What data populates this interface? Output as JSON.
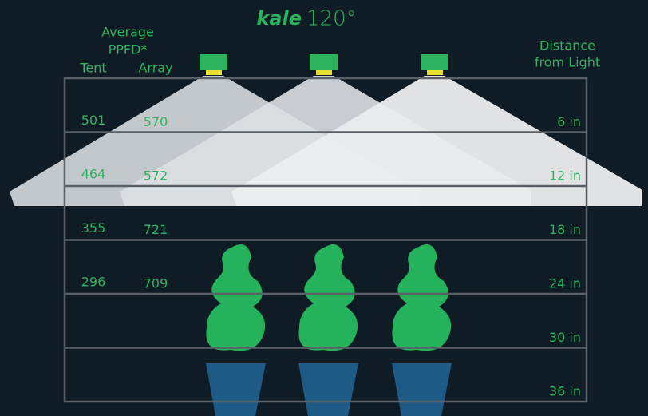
{
  "title": {
    "brand": "kale",
    "angle": "120°"
  },
  "headers": {
    "average": "Average",
    "ppfd": "PPFD*",
    "tent": "Tent",
    "array": "Array",
    "distance_1": "Distance",
    "distance_2": "from Light"
  },
  "rows": [
    {
      "distance": "6 in",
      "tent": "501",
      "array": "570"
    },
    {
      "distance": "12 in",
      "tent": "464",
      "array": "572"
    },
    {
      "distance": "18 in",
      "tent": "355",
      "array": "721"
    },
    {
      "distance": "24 in",
      "tent": "296",
      "array": "709"
    },
    {
      "distance": "30 in"
    },
    {
      "distance": "36 in"
    }
  ]
}
